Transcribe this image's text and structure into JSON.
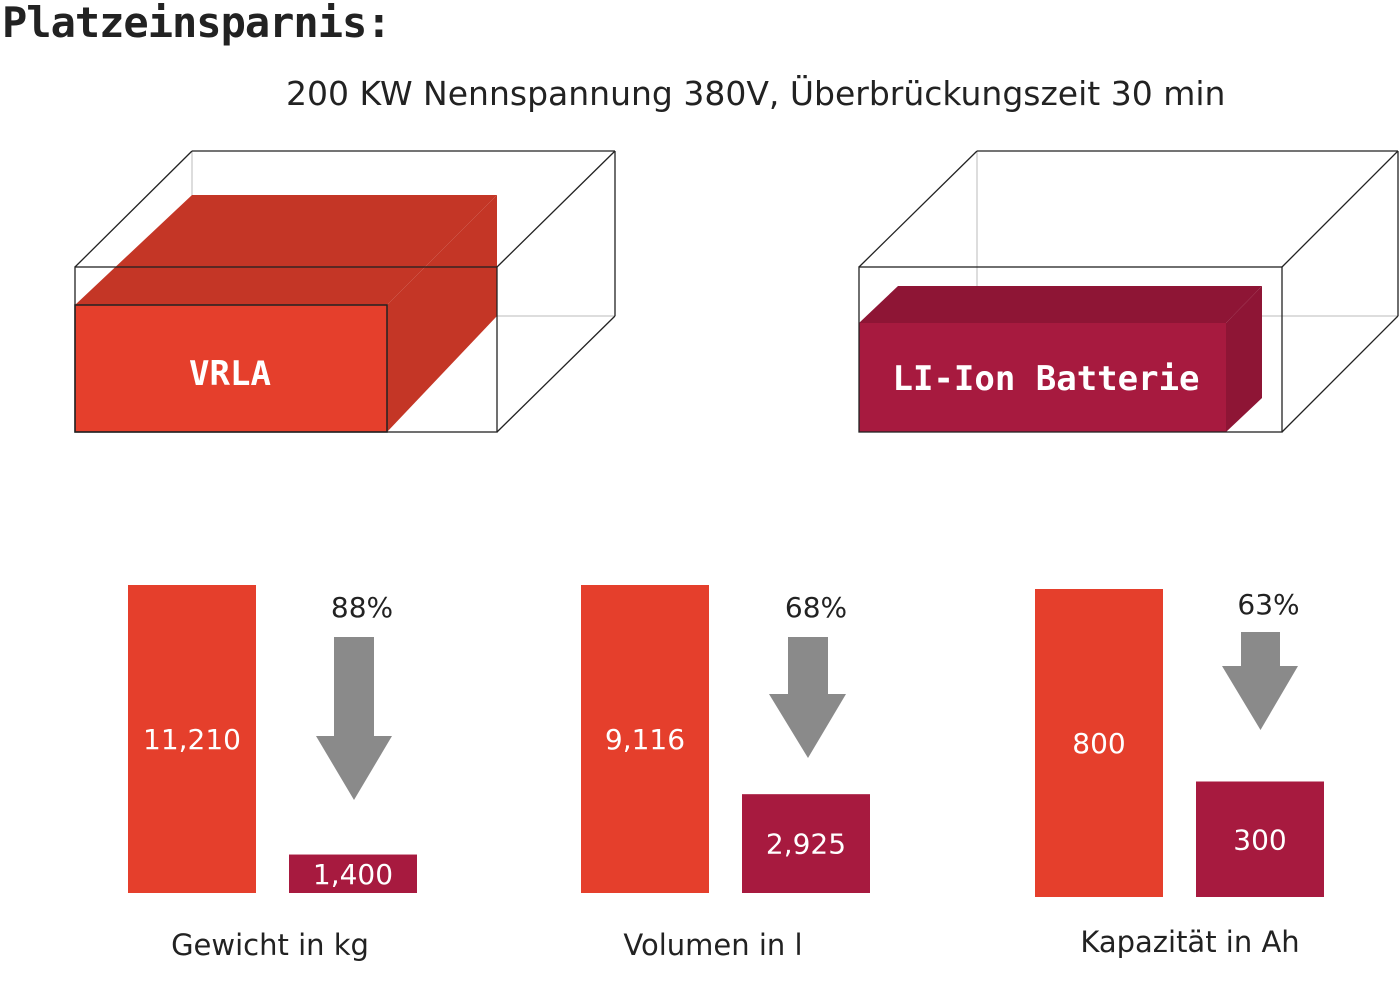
{
  "title": "Platzeinsparnis:",
  "subtitle": "200 KW Nennspannung 380V, Überbrückungszeit 30 min",
  "boxes": {
    "vrla_label": "VRLA",
    "li_label": "LI-Ion Batterie"
  },
  "colors": {
    "vrla": "#e53f2c",
    "li_ion": "#a71a3f",
    "arrow": "#8a8a8a"
  },
  "chart_data": [
    {
      "type": "bar",
      "categories": [
        "VRLA",
        "LI-Ion Batterie"
      ],
      "values": [
        11210,
        1400
      ],
      "value_labels": [
        "11,210",
        "1,400"
      ],
      "reduction": "88%",
      "xlabel": "Gewicht in kg"
    },
    {
      "type": "bar",
      "categories": [
        "VRLA",
        "LI-Ion Batterie"
      ],
      "values": [
        9116,
        2925
      ],
      "value_labels": [
        "9,116",
        "2,925"
      ],
      "reduction": "68%",
      "xlabel": "Volumen in l"
    },
    {
      "type": "bar",
      "categories": [
        "VRLA",
        "LI-Ion Batterie"
      ],
      "values": [
        800,
        300
      ],
      "value_labels": [
        "800",
        "300"
      ],
      "reduction": "63%",
      "xlabel": "Kapazität in Ah"
    }
  ]
}
